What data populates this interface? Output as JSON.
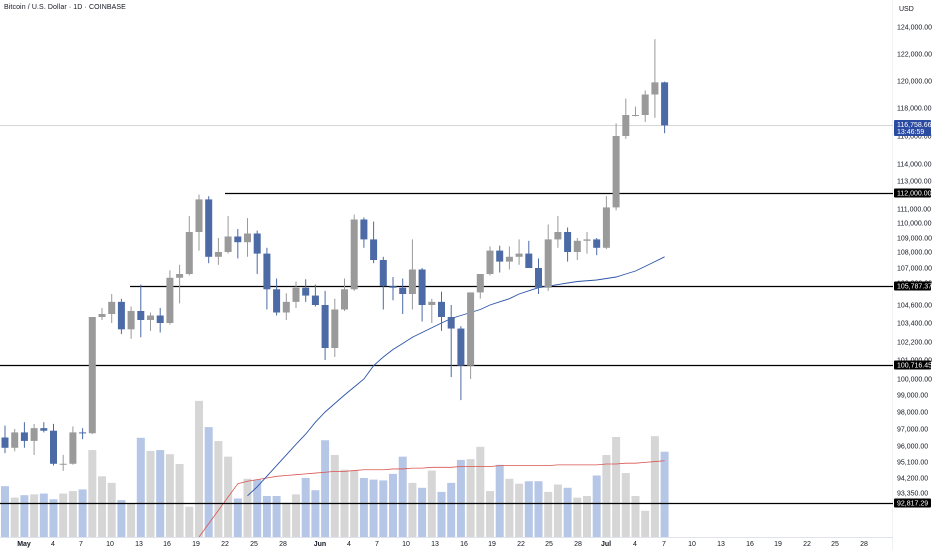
{
  "header": {
    "title": "Bitcoin / U.S. Dollar · 1D · COINBASE"
  },
  "price_axis": {
    "currency": "USD",
    "ticks": [
      "124,000.00",
      "122,000.00",
      "120,000.00",
      "118,000.00",
      "116,000.00",
      "114,000.00",
      "113,000.00",
      "112,000.00",
      "111,000.00",
      "110,000.00",
      "109,000.00",
      "108,000.00",
      "107,000.00",
      "106,000.00",
      "104,600.00",
      "103,400.00",
      "102,200.00",
      "101,000.00",
      "100,000.00",
      "99,000.00",
      "98,000.00",
      "97,000.00",
      "96,000.00",
      "95,100.00",
      "94,200.00",
      "93,350.00",
      "92,817.29"
    ]
  },
  "time_axis": {
    "labels": [
      "May",
      "4",
      "7",
      "10",
      "13",
      "16",
      "19",
      "22",
      "25",
      "28",
      "Jun",
      "4",
      "7",
      "10",
      "13",
      "16",
      "19",
      "22",
      "25",
      "28",
      "Jul",
      "4",
      "7",
      "10",
      "13",
      "16",
      "19",
      "22",
      "25",
      "28"
    ],
    "bold": [
      "May",
      "Jun",
      "Jul"
    ]
  },
  "price_tags": [
    {
      "label": "116,758.66",
      "sub": "13:46:59",
      "kind": "last",
      "color": "#2a4ba1"
    },
    {
      "label": "112,000.00",
      "kind": "line",
      "color": "#000000"
    },
    {
      "label": "105,787.37",
      "kind": "line",
      "color": "#000000"
    },
    {
      "label": "100,716.45",
      "kind": "line",
      "color": "#000000"
    },
    {
      "label": "92,817.29",
      "kind": "line",
      "color": "#000000"
    }
  ],
  "colors": {
    "up": "#9a9a9a",
    "down": "#4b6aa6",
    "vol_up": "#d6d6d6",
    "vol_down": "#b6c6e6",
    "ma_price": "#2c54a8",
    "ma_volume": "#d9534f",
    "hline": "#000000",
    "last_price_line": "#c9c9c9"
  },
  "chart_data": {
    "type": "candlestick",
    "symbol": "BTCUSD",
    "exchange": "COINBASE",
    "interval": "1D",
    "ylim": [
      92500,
      126000
    ],
    "horizontal_levels": [
      112000,
      105787.37,
      100716.45,
      92817.29
    ],
    "last_price": 116758.66,
    "countdown": "13:46:59",
    "ohlc": [
      [
        96500,
        97200,
        95600,
        95900
      ],
      [
        95900,
        97000,
        95700,
        96800
      ],
      [
        96800,
        97400,
        95900,
        96300
      ],
      [
        96300,
        97300,
        95500,
        97050
      ],
      [
        97050,
        97400,
        96800,
        96900
      ],
      [
        96900,
        97300,
        94900,
        95000
      ],
      [
        95000,
        95500,
        94600,
        95000
      ],
      [
        95000,
        97150,
        94950,
        96800
      ],
      [
        96800,
        97050,
        96400,
        96750
      ],
      [
        96750,
        103800,
        96700,
        103800
      ],
      [
        103800,
        104400,
        103600,
        104000
      ],
      [
        104000,
        105300,
        103400,
        104800
      ],
      [
        104800,
        105000,
        102700,
        103000
      ],
      [
        103000,
        104500,
        102400,
        104200
      ],
      [
        104200,
        105900,
        102500,
        103600
      ],
      [
        103600,
        104100,
        102900,
        103900
      ],
      [
        103900,
        104400,
        102800,
        103400
      ],
      [
        103400,
        106850,
        103300,
        106350
      ],
      [
        106350,
        107200,
        104700,
        106600
      ],
      [
        106600,
        110500,
        106500,
        109400
      ],
      [
        109400,
        111900,
        108100,
        111600
      ],
      [
        111600,
        111800,
        107300,
        107700
      ],
      [
        107700,
        109000,
        107200,
        108000
      ],
      [
        108000,
        110500,
        107900,
        109100
      ],
      [
        109100,
        109600,
        107600,
        108700
      ],
      [
        108700,
        110350,
        107700,
        109300
      ],
      [
        109300,
        109500,
        106600,
        107900
      ],
      [
        107900,
        108300,
        104300,
        105600
      ],
      [
        105600,
        106300,
        103900,
        104100
      ],
      [
        104100,
        105350,
        103600,
        104800
      ],
      [
        104800,
        106100,
        104400,
        105700
      ],
      [
        105700,
        106250,
        104800,
        105200
      ],
      [
        105200,
        105900,
        104500,
        104600
      ],
      [
        104600,
        105500,
        101000,
        101800
      ],
      [
        101800,
        105000,
        101200,
        104300
      ],
      [
        104300,
        106300,
        104200,
        105600
      ],
      [
        105600,
        110600,
        105500,
        110250
      ],
      [
        110250,
        110400,
        108300,
        108900
      ],
      [
        108900,
        110100,
        107300,
        107500
      ],
      [
        107500,
        107700,
        104300,
        105800
      ],
      [
        105800,
        106400,
        104900,
        105700
      ],
      [
        105700,
        106300,
        104000,
        105300
      ],
      [
        105300,
        108900,
        104300,
        106900
      ],
      [
        106900,
        107000,
        103500,
        104600
      ],
      [
        104600,
        105000,
        103400,
        104800
      ],
      [
        104800,
        105450,
        102900,
        103800
      ],
      [
        103800,
        104600,
        100100,
        103050
      ],
      [
        103050,
        103200,
        98700,
        100700
      ],
      [
        100700,
        105400,
        100000,
        105400
      ],
      [
        105400,
        106600,
        105000,
        106600
      ],
      [
        106600,
        108400,
        106500,
        108100
      ],
      [
        108100,
        108450,
        106700,
        107400
      ],
      [
        107400,
        108400,
        106900,
        107700
      ],
      [
        107700,
        108900,
        107200,
        107900
      ],
      [
        107900,
        108800,
        107000,
        107000
      ],
      [
        107000,
        107600,
        105300,
        105700
      ],
      [
        105700,
        109900,
        105500,
        108900
      ],
      [
        108900,
        110500,
        108300,
        109400
      ],
      [
        109400,
        109700,
        107400,
        108000
      ],
      [
        108000,
        109000,
        107500,
        108800
      ],
      [
        108800,
        109400,
        107900,
        108900
      ],
      [
        108900,
        109000,
        107800,
        108300
      ],
      [
        108300,
        111800,
        108200,
        111100
      ],
      [
        111100,
        116900,
        110900,
        116000
      ],
      [
        116000,
        118700,
        115800,
        117500
      ],
      [
        117500,
        118100,
        117400,
        117500
      ],
      [
        117500,
        119300,
        117000,
        119000
      ],
      [
        119000,
        123100,
        117300,
        119900
      ],
      [
        119900,
        119950,
        116200,
        116758.66
      ]
    ],
    "volume": [
      62,
      48,
      51,
      52,
      53,
      46,
      53,
      56,
      58,
      106,
      74,
      66,
      45,
      41,
      121,
      105,
      106,
      101,
      89,
      37,
      166,
      134,
      117,
      98,
      47,
      71,
      70,
      50,
      50,
      42,
      52,
      72,
      57,
      118,
      100,
      82,
      81,
      72,
      70,
      69,
      77,
      98,
      66,
      60,
      81,
      55,
      66,
      94,
      95,
      110,
      56,
      88,
      71,
      65,
      68,
      68,
      55,
      64,
      60,
      48,
      50,
      75,
      100,
      122,
      78,
      50,
      32,
      123,
      104
    ],
    "volume_ma": [
      null,
      null,
      null,
      null,
      null,
      null,
      null,
      null,
      null,
      null,
      null,
      null,
      null,
      null,
      null,
      null,
      null,
      null,
      null,
      null,
      null,
      null,
      null,
      null,
      65,
      68,
      70,
      72,
      74,
      75,
      76,
      77,
      78,
      79,
      80,
      80,
      81,
      82,
      82,
      82,
      83,
      83,
      84,
      84,
      85,
      85,
      85,
      86,
      86,
      86,
      86,
      87,
      87,
      87,
      87,
      87,
      87,
      88,
      88,
      88,
      88,
      88,
      89,
      89,
      90,
      90,
      91,
      92,
      93
    ],
    "price_ma": [
      null,
      null,
      null,
      null,
      null,
      null,
      null,
      null,
      null,
      null,
      null,
      null,
      null,
      null,
      null,
      null,
      null,
      null,
      null,
      null,
      null,
      null,
      null,
      null,
      null,
      93200,
      93700,
      94300,
      94900,
      95500,
      96100,
      96700,
      97400,
      98000,
      98500,
      99000,
      99500,
      100000,
      100700,
      101200,
      101700,
      102100,
      102500,
      102800,
      103100,
      103400,
      103700,
      103900,
      104100,
      104300,
      104600,
      104800,
      105000,
      105300,
      105500,
      105700,
      105800,
      105900,
      106000,
      106100,
      106150,
      106200,
      106300,
      106400,
      106600,
      106800,
      107100,
      107400,
      107700
    ]
  }
}
